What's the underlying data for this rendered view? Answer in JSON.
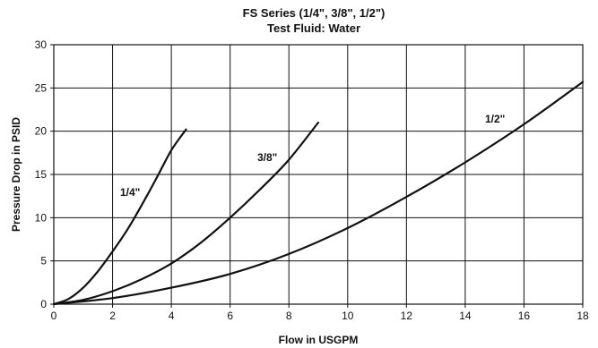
{
  "chart_data": {
    "type": "line",
    "title": "FS Series (1/4\", 3/8\", 1/2\")",
    "subtitle": "Test Fluid: Water",
    "xlabel": "Flow in USGPM",
    "ylabel": "Pressure Drop in PSID",
    "xlim": [
      0,
      18
    ],
    "ylim": [
      0,
      30
    ],
    "xticks": [
      "0",
      "2",
      "4",
      "6",
      "8",
      "10",
      "12",
      "14",
      "16",
      "18"
    ],
    "yticks": [
      "0",
      "5",
      "10",
      "15",
      "20",
      "25",
      "30"
    ],
    "grid": true,
    "legend": "none",
    "series": [
      {
        "name": "1/4\"",
        "x": [
          0,
          0.5,
          1,
          1.5,
          2,
          2.5,
          3,
          3.5,
          4,
          4.5
        ],
        "y": [
          0,
          0.6,
          1.9,
          3.8,
          6.1,
          8.6,
          11.5,
          14.6,
          17.8,
          20.2
        ]
      },
      {
        "name": "3/8\"",
        "x": [
          0,
          1,
          2,
          3,
          4,
          5,
          6,
          7,
          8,
          9
        ],
        "y": [
          0,
          0.5,
          1.5,
          2.9,
          4.7,
          7.1,
          10.0,
          13.2,
          16.7,
          21.0
        ]
      },
      {
        "name": "1/2\"",
        "x": [
          0,
          2,
          4,
          6,
          8,
          10,
          12,
          14,
          16,
          18
        ],
        "y": [
          0,
          0.7,
          1.9,
          3.5,
          5.8,
          8.8,
          12.4,
          16.4,
          20.8,
          25.7
        ]
      }
    ]
  }
}
